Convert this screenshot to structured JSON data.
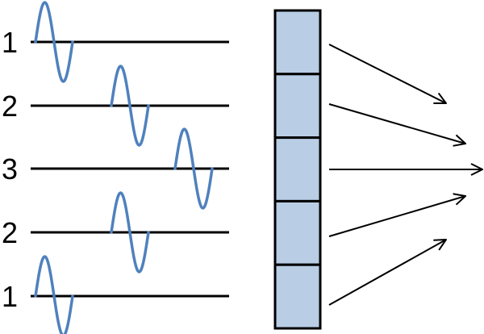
{
  "line_labels": [
    "1",
    "2",
    "3",
    "2",
    "1"
  ],
  "segment_count": 5,
  "colors": {
    "wave": "#4f81bd",
    "line": "#000000",
    "segment_fill": "#b9cde5",
    "segment_stroke": "#000000",
    "arrow": "#000000"
  },
  "icons": {
    "wave": "sine-wave-icon",
    "arrow": "arrow-right-icon"
  }
}
